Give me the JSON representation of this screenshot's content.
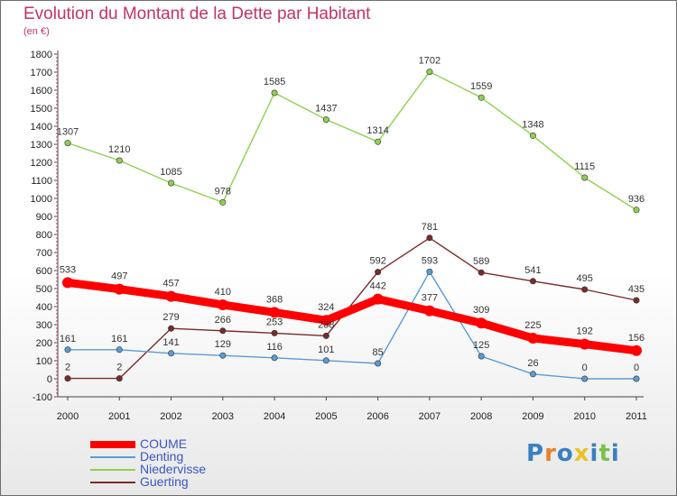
{
  "chart_data": {
    "type": "line",
    "title": "Evolution du Montant de la Dette par Habitant",
    "subtitle": "(en €)",
    "x": [
      "2000",
      "2001",
      "2002",
      "2003",
      "2004",
      "2005",
      "2006",
      "2007",
      "2008",
      "2009",
      "2010",
      "2011"
    ],
    "ylim": [
      -100,
      1800
    ],
    "yticks": [
      -100,
      0,
      100,
      200,
      300,
      400,
      500,
      600,
      700,
      800,
      900,
      1000,
      1100,
      1200,
      1300,
      1400,
      1500,
      1600,
      1700,
      1800
    ],
    "grid": false,
    "legend": "bottom-left",
    "series": [
      {
        "name": "COUME",
        "color": "#ff0000",
        "values": [
          533,
          497,
          457,
          410,
          368,
          324,
          442,
          377,
          309,
          225,
          192,
          156
        ]
      },
      {
        "name": "Denting",
        "color": "#5b9bd5",
        "values": [
          161,
          161,
          141,
          129,
          116,
          101,
          85,
          593,
          125,
          26,
          0,
          0
        ]
      },
      {
        "name": "Niedervisse",
        "color": "#8fd14f",
        "values": [
          1307,
          1210,
          1085,
          978,
          1585,
          1437,
          1314,
          1702,
          1559,
          1348,
          1115,
          936
        ]
      },
      {
        "name": "Guerting",
        "color": "#7b2a2a",
        "values": [
          2,
          2,
          279,
          266,
          253,
          238,
          592,
          781,
          589,
          541,
          495,
          435
        ]
      }
    ]
  },
  "brand": {
    "name": "Proxiti",
    "letters": [
      "P",
      "r",
      "o",
      "x",
      "i",
      "t",
      "i"
    ],
    "colors": [
      "#3a7fc1",
      "#e8822a",
      "#3a7fc1",
      "#e8c22a",
      "#3a7fc1",
      "#7cc24a",
      "#3a7fc1"
    ]
  }
}
